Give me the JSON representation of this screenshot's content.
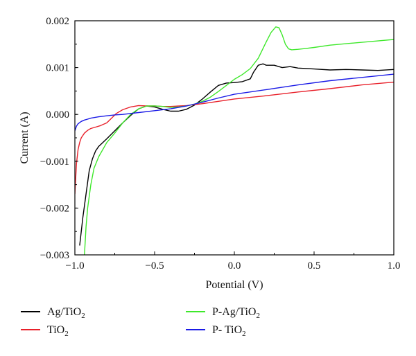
{
  "chart_data": {
    "type": "line",
    "title": "",
    "xlabel": "Potential (V)",
    "ylabel": "Current (A)",
    "xlim": [
      -1.0,
      1.0
    ],
    "ylim": [
      -0.003,
      0.002
    ],
    "xticks": [
      -1.0,
      -0.5,
      0.0,
      0.5,
      1.0
    ],
    "xtick_labels": [
      "−1.0",
      "−0.5",
      "0.0",
      "0.5",
      "1.0"
    ],
    "yticks": [
      -0.003,
      -0.002,
      -0.001,
      0.0,
      0.001,
      0.002
    ],
    "ytick_labels": [
      "−0.003",
      "−0.002",
      "−0.001",
      "0.000",
      "0.001",
      "0.002"
    ],
    "grid": false,
    "legend_position": "bottom",
    "series": [
      {
        "name": "Ag/TiO2",
        "legend_main": "Ag/TiO",
        "legend_sub": "2",
        "color": "#000000",
        "x": [
          -0.97,
          -0.95,
          -0.93,
          -0.91,
          -0.89,
          -0.87,
          -0.85,
          -0.8,
          -0.75,
          -0.7,
          -0.65,
          -0.6,
          -0.55,
          -0.5,
          -0.45,
          -0.4,
          -0.35,
          -0.3,
          -0.25,
          -0.2,
          -0.15,
          -0.1,
          -0.05,
          0.0,
          0.05,
          0.1,
          0.12,
          0.15,
          0.18,
          0.2,
          0.25,
          0.3,
          0.35,
          0.4,
          0.5,
          0.6,
          0.7,
          0.8,
          0.9,
          1.0
        ],
        "y": [
          -0.0028,
          -0.0022,
          -0.0017,
          -0.0012,
          -0.00095,
          -0.00078,
          -0.00068,
          -0.00052,
          -0.00035,
          -0.00018,
          -2e-05,
          0.00012,
          0.00018,
          0.00016,
          0.00011,
          7e-05,
          7e-05,
          0.00011,
          0.0002,
          0.00033,
          0.00048,
          0.00062,
          0.00067,
          0.00068,
          0.0007,
          0.00076,
          0.0009,
          0.00105,
          0.00108,
          0.00105,
          0.00105,
          0.001,
          0.00102,
          0.00099,
          0.00097,
          0.00095,
          0.00096,
          0.00095,
          0.00094,
          0.00096
        ]
      },
      {
        "name": "TiO2",
        "legend_main": "TiO",
        "legend_sub": "2",
        "color": "#e8202a",
        "x": [
          -1.0,
          -0.99,
          -0.98,
          -0.97,
          -0.96,
          -0.94,
          -0.92,
          -0.9,
          -0.87,
          -0.84,
          -0.8,
          -0.77,
          -0.74,
          -0.7,
          -0.65,
          -0.6,
          -0.55,
          -0.5,
          -0.45,
          -0.4,
          -0.3,
          -0.2,
          -0.1,
          0.0,
          0.2,
          0.4,
          0.6,
          0.8,
          1.0
        ],
        "y": [
          -0.0017,
          -0.00105,
          -0.00075,
          -0.0006,
          -0.0005,
          -0.0004,
          -0.00034,
          -0.0003,
          -0.00027,
          -0.00024,
          -0.00018,
          -8e-05,
          2e-05,
          0.0001,
          0.00016,
          0.00019,
          0.00018,
          0.00018,
          0.00017,
          0.00017,
          0.00019,
          0.00023,
          0.00028,
          0.00033,
          0.0004,
          0.00048,
          0.00055,
          0.00063,
          0.00069
        ]
      },
      {
        "name": "P-Ag/TiO2",
        "legend_main": "P-Ag/TiO",
        "legend_sub": "2",
        "color": "#3ee82b",
        "x": [
          -0.94,
          -0.93,
          -0.92,
          -0.9,
          -0.88,
          -0.85,
          -0.8,
          -0.75,
          -0.7,
          -0.65,
          -0.6,
          -0.55,
          -0.5,
          -0.45,
          -0.4,
          -0.35,
          -0.3,
          -0.25,
          -0.2,
          -0.15,
          -0.1,
          -0.05,
          0.0,
          0.05,
          0.1,
          0.15,
          0.2,
          0.23,
          0.26,
          0.28,
          0.3,
          0.32,
          0.34,
          0.36,
          0.4,
          0.45,
          0.5,
          0.6,
          0.7,
          0.8,
          0.9,
          1.0
        ],
        "y": [
          -0.003,
          -0.0024,
          -0.002,
          -0.0015,
          -0.00115,
          -0.0009,
          -0.0006,
          -0.0004,
          -0.00018,
          0.0,
          0.00012,
          0.00018,
          0.00018,
          0.00017,
          0.00015,
          0.00016,
          0.00018,
          0.00022,
          0.00028,
          0.00037,
          0.00049,
          0.00062,
          0.00075,
          0.00085,
          0.00098,
          0.0012,
          0.00155,
          0.00175,
          0.00187,
          0.00185,
          0.0017,
          0.0015,
          0.0014,
          0.00138,
          0.00139,
          0.00141,
          0.00143,
          0.00148,
          0.00151,
          0.00154,
          0.00157,
          0.0016
        ]
      },
      {
        "name": "P-TiO2",
        "legend_main": "P- TiO",
        "legend_sub": "2",
        "color": "#1a1ae6",
        "x": [
          -1.0,
          -0.99,
          -0.98,
          -0.96,
          -0.94,
          -0.92,
          -0.9,
          -0.85,
          -0.8,
          -0.75,
          -0.7,
          -0.6,
          -0.5,
          -0.4,
          -0.3,
          -0.2,
          -0.1,
          0.0,
          0.2,
          0.4,
          0.6,
          0.8,
          1.0
        ],
        "y": [
          -0.00035,
          -0.00025,
          -0.0002,
          -0.00015,
          -0.00012,
          -0.0001,
          -8e-05,
          -5e-05,
          -3e-05,
          -1e-05,
          0.0,
          4e-05,
          8e-05,
          0.00012,
          0.00018,
          0.00026,
          0.00035,
          0.00043,
          0.00053,
          0.00063,
          0.00072,
          0.00079,
          0.00086
        ]
      }
    ]
  }
}
